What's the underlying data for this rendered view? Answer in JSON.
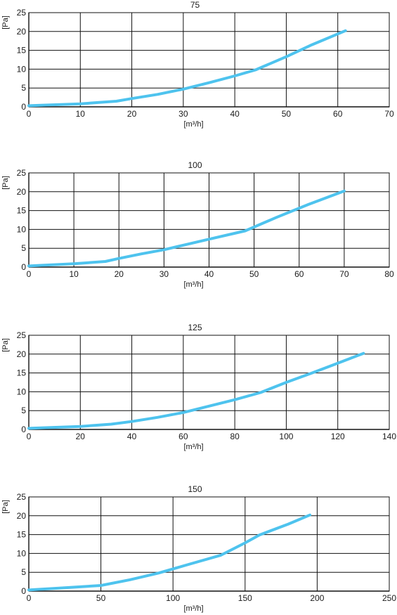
{
  "chart_data": [
    {
      "type": "line",
      "title": "75",
      "xlabel": "[m³/h]",
      "ylabel": "[Pa]",
      "xlim": [
        0,
        70
      ],
      "ylim": [
        0,
        25
      ],
      "xticks": [
        0,
        10,
        20,
        30,
        40,
        50,
        60,
        70
      ],
      "yticks": [
        0,
        5,
        10,
        15,
        20,
        25
      ],
      "grid": true,
      "line_color": "#4ec3ee",
      "series": [
        {
          "x": [
            0,
            10,
            17,
            20,
            25,
            30,
            35,
            40,
            44,
            50,
            55,
            61.5
          ],
          "y": [
            0.3,
            0.8,
            1.5,
            2.2,
            3.3,
            4.7,
            6.4,
            8.2,
            9.8,
            13.3,
            16.5,
            20.2
          ]
        }
      ]
    },
    {
      "type": "line",
      "title": "100",
      "xlabel": "[m³/h]",
      "ylabel": "[Pa]",
      "xlim": [
        0,
        80
      ],
      "ylim": [
        0,
        25
      ],
      "xticks": [
        0,
        10,
        20,
        30,
        40,
        50,
        60,
        70,
        80
      ],
      "yticks": [
        0,
        5,
        10,
        15,
        20,
        25
      ],
      "grid": true,
      "line_color": "#4ec3ee",
      "series": [
        {
          "x": [
            0,
            10,
            17,
            20,
            25,
            30,
            35,
            40,
            48,
            55,
            62,
            70
          ],
          "y": [
            0.3,
            0.9,
            1.5,
            2.3,
            3.5,
            4.6,
            6.0,
            7.4,
            9.6,
            13.2,
            16.6,
            20.2
          ]
        }
      ]
    },
    {
      "type": "line",
      "title": "125",
      "xlabel": "[m³/h]",
      "ylabel": "[Pa]",
      "xlim": [
        0,
        140
      ],
      "ylim": [
        0,
        25
      ],
      "xticks": [
        0,
        20,
        40,
        60,
        80,
        100,
        120,
        140
      ],
      "yticks": [
        0,
        5,
        10,
        15,
        20,
        25
      ],
      "grid": true,
      "line_color": "#4ec3ee",
      "series": [
        {
          "x": [
            0,
            20,
            32,
            40,
            50,
            60,
            70,
            80,
            90,
            100,
            110,
            120,
            130
          ],
          "y": [
            0.3,
            0.8,
            1.4,
            2.1,
            3.2,
            4.5,
            6.2,
            7.9,
            9.8,
            12.5,
            15.0,
            17.6,
            20.2
          ]
        }
      ]
    },
    {
      "type": "line",
      "title": "150",
      "xlabel": "[m³/h]",
      "ylabel": "[Pa]",
      "xlim": [
        0,
        250
      ],
      "ylim": [
        0,
        25
      ],
      "xticks": [
        0,
        50,
        100,
        150,
        200,
        250
      ],
      "yticks": [
        0,
        5,
        10,
        15,
        20,
        25
      ],
      "grid": true,
      "line_color": "#4ec3ee",
      "series": [
        {
          "x": [
            0,
            25,
            50,
            70,
            90,
            110,
            133,
            150,
            160,
            180,
            195
          ],
          "y": [
            0.3,
            0.9,
            1.5,
            3.0,
            4.8,
            7.0,
            9.5,
            12.8,
            14.9,
            17.8,
            20.2
          ]
        }
      ]
    }
  ]
}
